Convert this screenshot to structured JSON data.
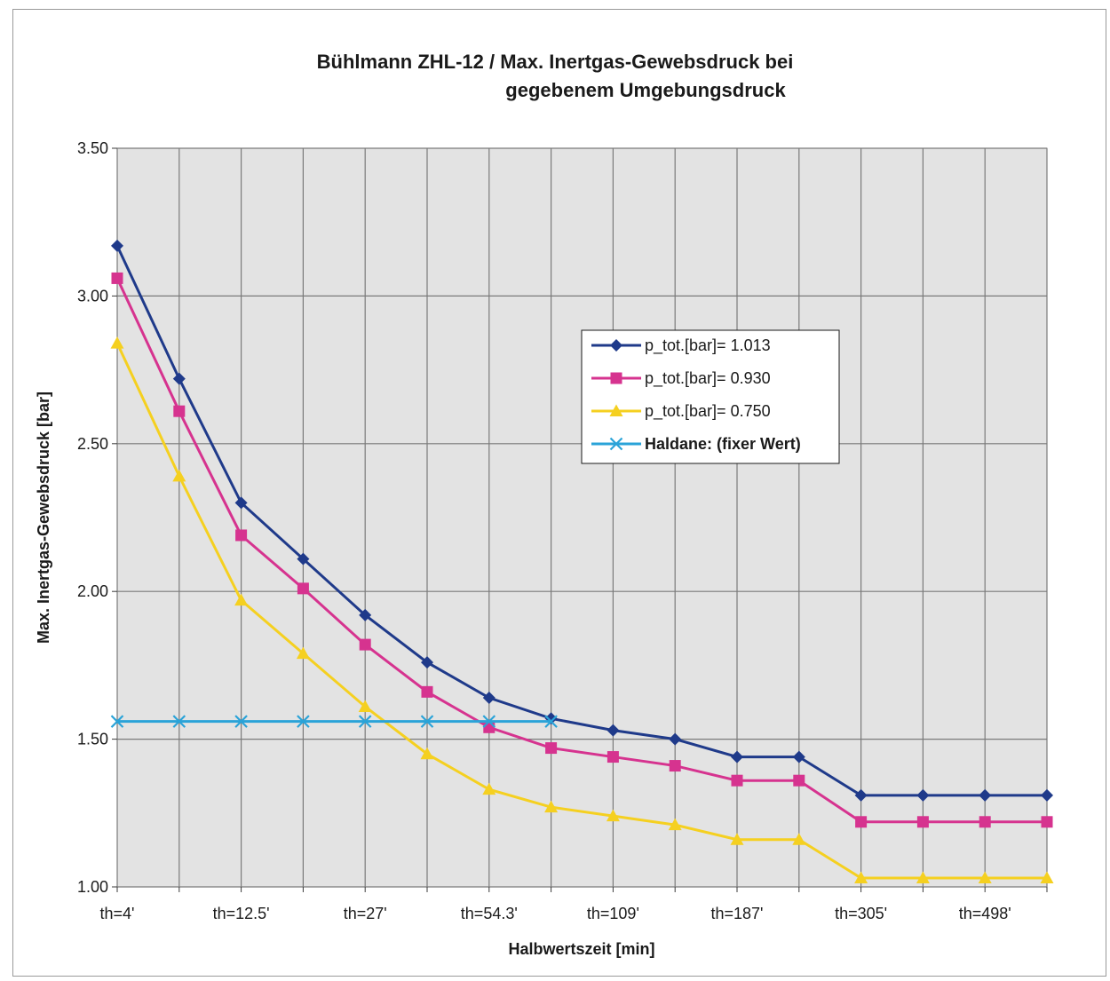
{
  "chart_data": {
    "type": "line",
    "title_line1": "Bühlmann ZHL-12 / Max. Inertgas-Gewebsdruck bei",
    "title_line2": "gegebenem Umgebungsdruck",
    "xlabel": "Halbwertszeit [min]",
    "ylabel": "Max. Inertgas-Gewebsdruck [bar]",
    "ylim": [
      1.0,
      3.5
    ],
    "y_ticks": [
      "1.00",
      "1.50",
      "2.00",
      "2.50",
      "3.00",
      "3.50"
    ],
    "categories": [
      "th=4'",
      "",
      "th=12.5'",
      "",
      "th=27'",
      "",
      "th=54.3'",
      "",
      "th=109'",
      "",
      "th=187'",
      "",
      "th=305'",
      "",
      "th=498'",
      ""
    ],
    "grid": true,
    "legend_position": "center-right",
    "series": [
      {
        "name": "p_tot.[bar]= 1.013",
        "color": "#1f3a8a",
        "marker": "diamond",
        "values": [
          3.17,
          2.72,
          2.3,
          2.11,
          1.92,
          1.76,
          1.64,
          1.57,
          1.53,
          1.5,
          1.44,
          1.44,
          1.31,
          1.31,
          1.31,
          1.31
        ]
      },
      {
        "name": "p_tot.[bar]= 0.930",
        "color": "#d6338f",
        "marker": "square",
        "values": [
          3.06,
          2.61,
          2.19,
          2.01,
          1.82,
          1.66,
          1.54,
          1.47,
          1.44,
          1.41,
          1.36,
          1.36,
          1.22,
          1.22,
          1.22,
          1.22
        ]
      },
      {
        "name": "p_tot.[bar]= 0.750",
        "color": "#f5d020",
        "marker": "triangle",
        "values": [
          2.84,
          2.39,
          1.97,
          1.79,
          1.61,
          1.45,
          1.33,
          1.27,
          1.24,
          1.21,
          1.16,
          1.16,
          1.03,
          1.03,
          1.03,
          1.03
        ]
      },
      {
        "name": "Haldane: (fixer Wert)",
        "color": "#2aa3d8",
        "marker": "x",
        "bold": true,
        "values": [
          1.56,
          1.56,
          1.56,
          1.56,
          1.56,
          1.56,
          1.56,
          1.56,
          null,
          null,
          null,
          null,
          null,
          null,
          null,
          null
        ]
      }
    ]
  }
}
